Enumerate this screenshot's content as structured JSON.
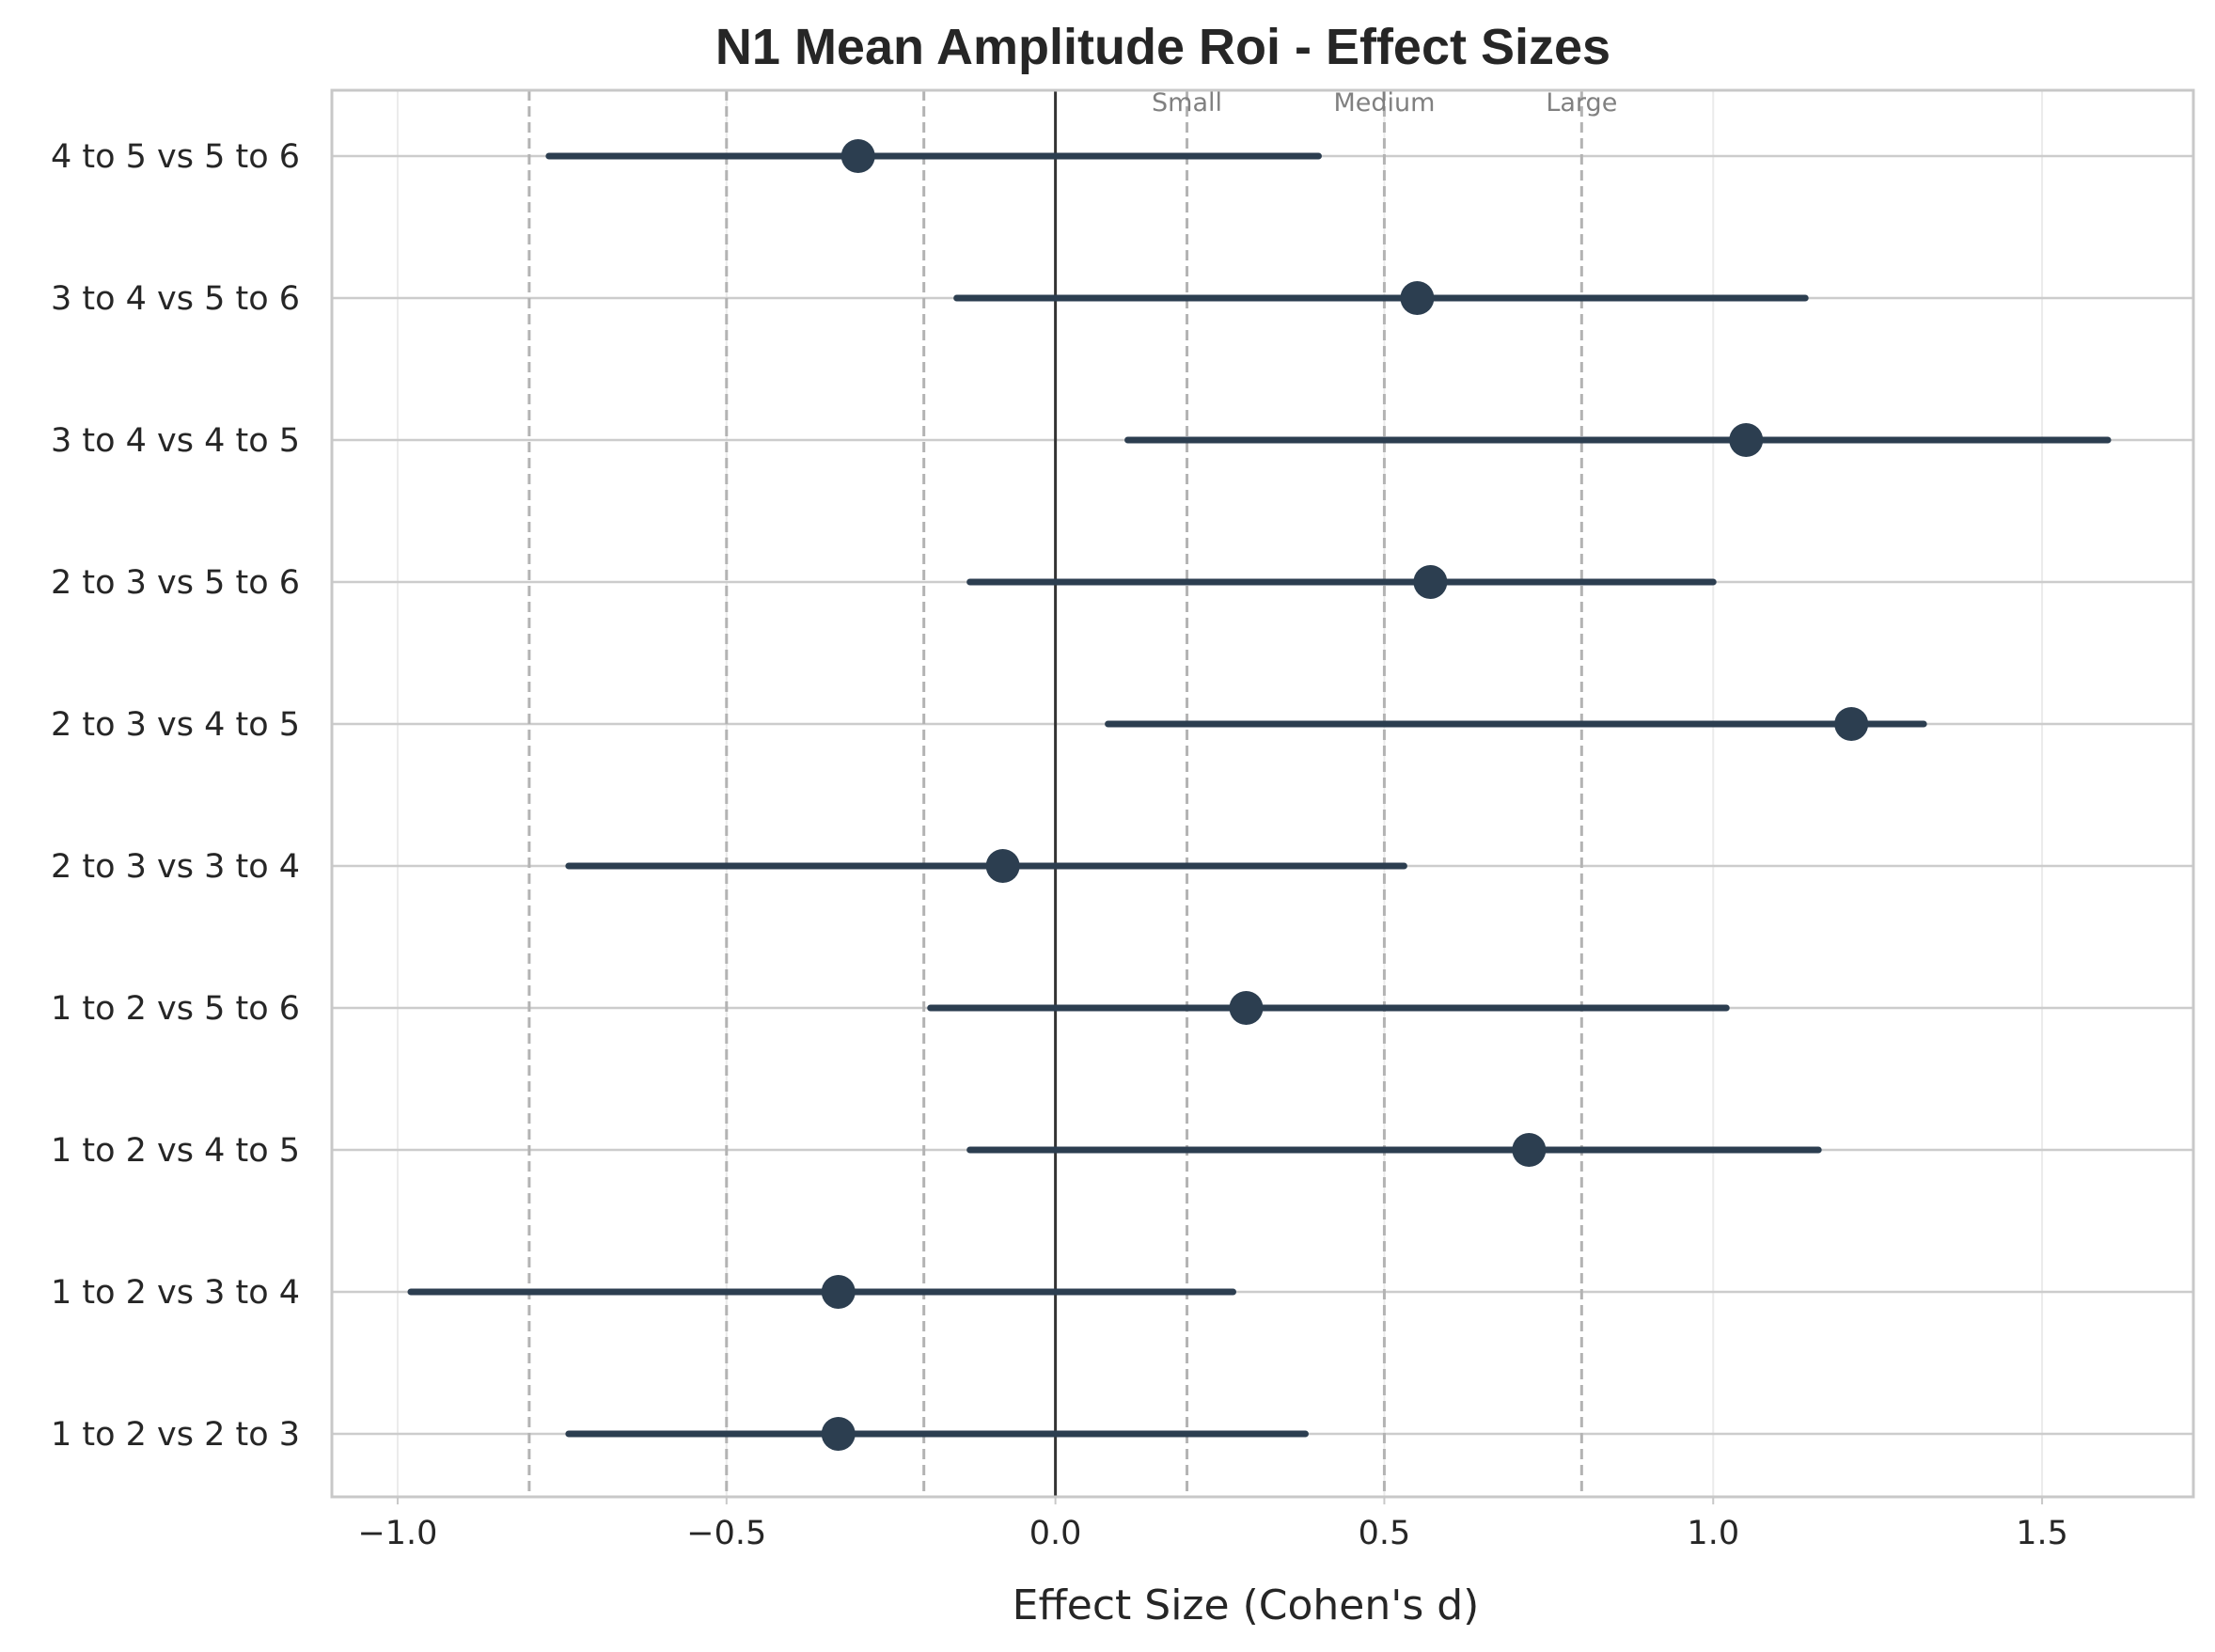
{
  "chart_data": {
    "type": "forest",
    "title": "N1 Mean Amplitude Roi - Effect Sizes",
    "xlabel": "Effect Size (Cohen's d)",
    "ylabel": "",
    "xlim": [
      -1.1,
      1.73
    ],
    "xticks": [
      -1.0,
      -0.5,
      0.0,
      0.5,
      1.0,
      1.5
    ],
    "xtick_labels": [
      "−1.0",
      "−0.5",
      "0.0",
      "0.5",
      "1.0",
      "1.5"
    ],
    "grid": true,
    "marker_color": "#2c3e50",
    "reference_line": {
      "x": 0,
      "color": "#333333"
    },
    "thresholds": [
      {
        "label": "Small",
        "value": 0.2,
        "mirrored": -0.2
      },
      {
        "label": "Medium",
        "value": 0.5,
        "mirrored": -0.5
      },
      {
        "label": "Large",
        "value": 0.8,
        "mirrored": -0.8
      }
    ],
    "comparisons": [
      {
        "label": "4 to 5 vs 5 to 6",
        "d": -0.3,
        "ci_low": -0.77,
        "ci_high": 0.4
      },
      {
        "label": "3 to 4 vs 5 to 6",
        "d": 0.55,
        "ci_low": -0.15,
        "ci_high": 1.14
      },
      {
        "label": "3 to 4 vs 4 to 5",
        "d": 1.05,
        "ci_low": 0.11,
        "ci_high": 1.6
      },
      {
        "label": "2 to 3 vs 5 to 6",
        "d": 0.57,
        "ci_low": -0.13,
        "ci_high": 1.0
      },
      {
        "label": "2 to 3 vs 4 to 5",
        "d": 1.21,
        "ci_low": 0.08,
        "ci_high": 1.32
      },
      {
        "label": "2 to 3 vs 3 to 4",
        "d": -0.08,
        "ci_low": -0.74,
        "ci_high": 0.53
      },
      {
        "label": "1 to 2 vs 5 to 6",
        "d": 0.29,
        "ci_low": -0.19,
        "ci_high": 1.02
      },
      {
        "label": "1 to 2 vs 4 to 5",
        "d": 0.72,
        "ci_low": -0.13,
        "ci_high": 1.16
      },
      {
        "label": "1 to 2 vs 3 to 4",
        "d": -0.33,
        "ci_low": -0.98,
        "ci_high": 0.27
      },
      {
        "label": "1 to 2 vs 2 to 3",
        "d": -0.33,
        "ci_low": -0.74,
        "ci_high": 0.38
      }
    ]
  }
}
